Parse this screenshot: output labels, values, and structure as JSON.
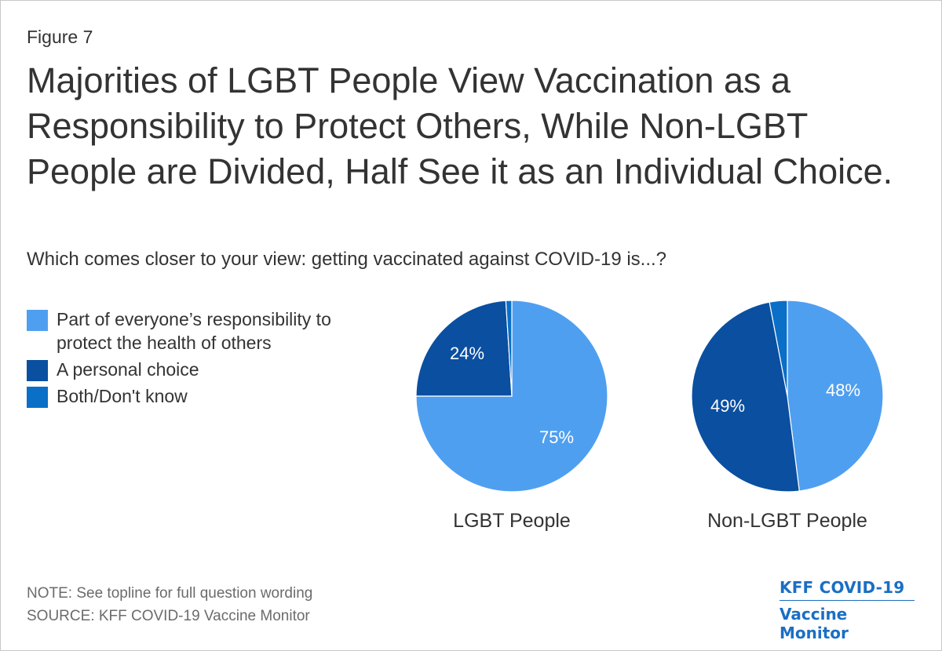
{
  "figure_label": "Figure 7",
  "chart_data": {
    "type": "pie",
    "title": "Majorities of LGBT People View Vaccination as a Responsibility to Protect Others, While Non-LGBT People are Divided, Half See it as an Individual Choice.",
    "subtitle": "Which comes closer to your view: getting vaccinated against COVID-19 is...?",
    "legend": [
      {
        "label": "Part of everyone’s responsibility to protect the health of others",
        "color": "#4f9ff0"
      },
      {
        "label": "A personal choice",
        "color": "#0a4fa0"
      },
      {
        "label": "Both/Don't know",
        "color": "#0a6fc7"
      }
    ],
    "pies": [
      {
        "name": "LGBT People",
        "slices": [
          {
            "category": "Part of everyone’s responsibility to protect the health of others",
            "value": 75,
            "label": "75%"
          },
          {
            "category": "A personal choice",
            "value": 24,
            "label": "24%"
          },
          {
            "category": "Both/Don't know",
            "value": 1,
            "label": ""
          }
        ]
      },
      {
        "name": "Non-LGBT People",
        "slices": [
          {
            "category": "Part of everyone’s responsibility to protect the health of others",
            "value": 48,
            "label": "48%"
          },
          {
            "category": "A personal choice",
            "value": 49,
            "label": "49%"
          },
          {
            "category": "Both/Don't know",
            "value": 3,
            "label": ""
          }
        ]
      }
    ]
  },
  "footnotes": {
    "note": "NOTE: See topline for full question wording",
    "source": "SOURCE: KFF COVID-19 Vaccine Monitor"
  },
  "brand": {
    "line1": "KFF COVID-19",
    "line2": "Vaccine Monitor"
  }
}
